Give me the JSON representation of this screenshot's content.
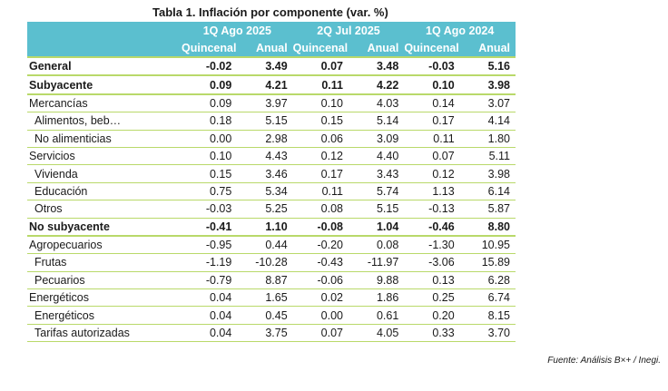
{
  "title": "Tabla 1. Inflación por componente (var. %)",
  "periods": [
    "1Q Ago 2025",
    "2Q Jul 2025",
    "1Q Ago 2024"
  ],
  "subheaders": [
    "Quincenal",
    "Anual"
  ],
  "rows": [
    {
      "label": "General",
      "values": [
        "-0.02",
        "3.49",
        "0.07",
        "3.48",
        "-0.03",
        "5.16"
      ]
    },
    {
      "label": "Subyacente",
      "values": [
        "0.09",
        "4.21",
        "0.11",
        "4.22",
        "0.10",
        "3.98"
      ]
    },
    {
      "label": "Mercancías",
      "values": [
        "0.09",
        "3.97",
        "0.10",
        "4.03",
        "0.14",
        "3.07"
      ]
    },
    {
      "label": "Alimentos, beb…",
      "values": [
        "0.18",
        "5.15",
        "0.15",
        "5.14",
        "0.17",
        "4.14"
      ]
    },
    {
      "label": "No alimenticias",
      "values": [
        "0.00",
        "2.98",
        "0.06",
        "3.09",
        "0.11",
        "1.80"
      ]
    },
    {
      "label": "Servicios",
      "values": [
        "0.10",
        "4.43",
        "0.12",
        "4.40",
        "0.07",
        "5.11"
      ]
    },
    {
      "label": "Vivienda",
      "values": [
        "0.15",
        "3.46",
        "0.17",
        "3.43",
        "0.12",
        "3.98"
      ]
    },
    {
      "label": "Educación",
      "values": [
        "0.75",
        "5.34",
        "0.11",
        "5.74",
        "1.13",
        "6.14"
      ]
    },
    {
      "label": "Otros",
      "values": [
        "-0.03",
        "5.25",
        "0.08",
        "5.15",
        "-0.13",
        "5.87"
      ]
    },
    {
      "label": "No subyacente",
      "values": [
        "-0.41",
        "1.10",
        "-0.08",
        "1.04",
        "-0.46",
        "8.80"
      ]
    },
    {
      "label": "Agropecuarios",
      "values": [
        "-0.95",
        "0.44",
        "-0.20",
        "0.08",
        "-1.30",
        "10.95"
      ]
    },
    {
      "label": "Frutas",
      "values": [
        "-1.19",
        "-10.28",
        "-0.43",
        "-11.97",
        "-3.06",
        "15.89"
      ]
    },
    {
      "label": "Pecuarios",
      "values": [
        "-0.79",
        "8.87",
        "-0.06",
        "9.88",
        "0.13",
        "6.28"
      ]
    },
    {
      "label": "Energéticos",
      "values": [
        "0.04",
        "1.65",
        "0.02",
        "1.86",
        "0.25",
        "6.74"
      ]
    },
    {
      "label": "Energéticos",
      "values": [
        "0.04",
        "0.45",
        "0.00",
        "0.61",
        "0.20",
        "8.15"
      ]
    },
    {
      "label": "Tarifas autorizadas",
      "values": [
        "0.04",
        "3.75",
        "0.07",
        "4.05",
        "0.33",
        "3.70"
      ]
    }
  ],
  "source": "Fuente: Análisis B×+ / Inegi.",
  "colors": {
    "header_bg": "#5bbfcf",
    "header_text": "#ffffff",
    "rule": "#b9d96a"
  }
}
